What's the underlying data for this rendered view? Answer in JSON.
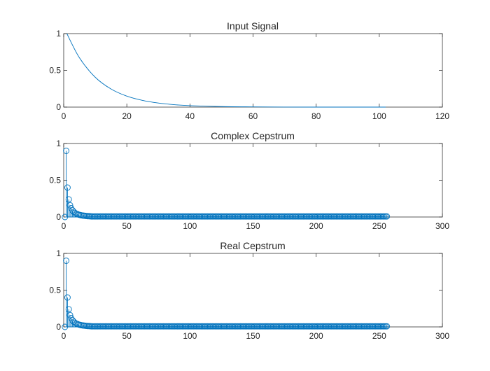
{
  "chart_data": [
    {
      "type": "line",
      "title": "Input Signal",
      "xlim": [
        0,
        120
      ],
      "ylim": [
        0,
        1
      ],
      "xticks": [
        0,
        20,
        40,
        60,
        80,
        100,
        120
      ],
      "yticks": [
        0,
        0.5,
        1
      ],
      "grid": false,
      "color": "#0072bd",
      "series": [
        {
          "x": [
            1,
            5,
            10,
            15,
            20,
            25,
            30,
            35,
            40,
            50,
            60,
            70,
            80,
            90,
            100,
            102
          ],
          "y": [
            1,
            0.67,
            0.406,
            0.246,
            0.149,
            0.091,
            0.055,
            0.033,
            0.02,
            0.007,
            0.003,
            0.001,
            0.0,
            0.0,
            0.0,
            0.0
          ]
        }
      ]
    },
    {
      "type": "scatter",
      "style": "stem",
      "title": "Complex Cepstrum",
      "xlim": [
        0,
        300
      ],
      "ylim": [
        0,
        1
      ],
      "xticks": [
        0,
        50,
        100,
        150,
        200,
        250,
        300
      ],
      "yticks": [
        0,
        0.5,
        1
      ],
      "grid": false,
      "color": "#0072bd",
      "series": [
        {
          "x_start": 1,
          "x_end": 256,
          "head": [
            0,
            0.9,
            0.4,
            0.24,
            0.16,
            0.12,
            0.09,
            0.07,
            0.055,
            0.045,
            0.038,
            0.032,
            0.027,
            0.023,
            0.02,
            0.018,
            0.016,
            0.014,
            0.012,
            0.011,
            0.01
          ],
          "tail_value": 0.008
        }
      ]
    },
    {
      "type": "scatter",
      "style": "stem",
      "title": "Real Cepstrum",
      "xlim": [
        0,
        300
      ],
      "ylim": [
        0,
        1
      ],
      "xticks": [
        0,
        50,
        100,
        150,
        200,
        250,
        300
      ],
      "yticks": [
        0,
        0.5,
        1
      ],
      "grid": false,
      "color": "#0072bd",
      "series": [
        {
          "x_start": 1,
          "x_end": 256,
          "head": [
            0,
            0.9,
            0.4,
            0.24,
            0.16,
            0.12,
            0.09,
            0.07,
            0.055,
            0.045,
            0.038,
            0.032,
            0.027,
            0.023,
            0.02,
            0.018,
            0.016,
            0.014,
            0.012,
            0.011,
            0.01
          ],
          "tail_value": 0.008
        }
      ]
    }
  ]
}
